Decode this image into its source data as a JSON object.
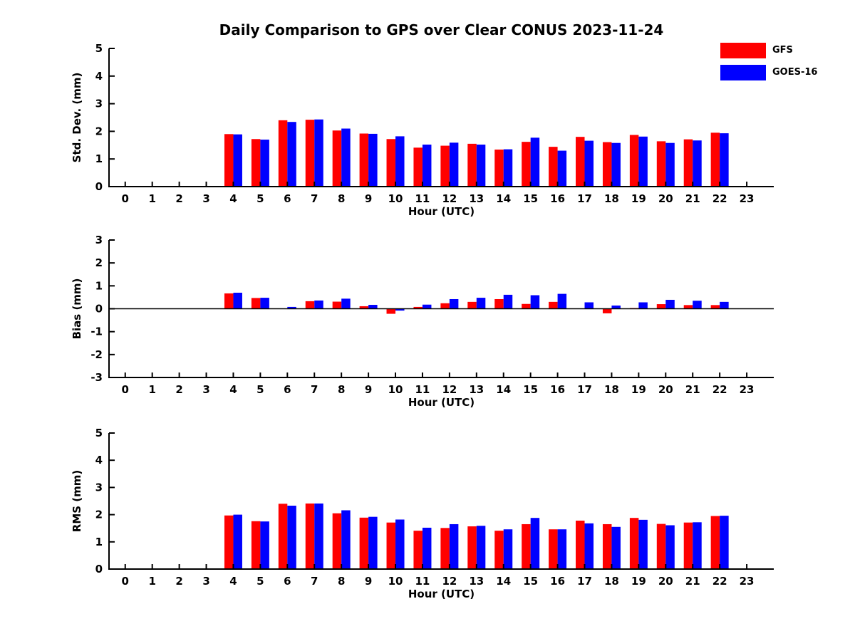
{
  "title": "Daily Comparison to GPS over Clear CONUS 2023-11-24",
  "legend": {
    "entries": [
      {
        "label": "GFS",
        "color": "#ff0000"
      },
      {
        "label": "GOES-16",
        "color": "#0000ff"
      }
    ]
  },
  "colors": {
    "gfs": "#ff0000",
    "goes16": "#0000ff",
    "axis": "#000000",
    "background": "#ffffff"
  },
  "chart_data": [
    {
      "type": "bar",
      "name": "std-dev",
      "ylabel": "Std. Dev. (mm)",
      "xlabel": "Hour (UTC)",
      "ylim": [
        0,
        5
      ],
      "yticks": [
        0,
        1,
        2,
        3,
        4,
        5
      ],
      "categories": [
        0,
        1,
        2,
        3,
        4,
        5,
        6,
        7,
        8,
        9,
        10,
        11,
        12,
        13,
        14,
        15,
        16,
        17,
        18,
        19,
        20,
        21,
        22,
        23
      ],
      "series": [
        {
          "name": "GFS",
          "color": "#ff0000",
          "values": [
            0,
            0,
            0,
            0,
            1.9,
            1.72,
            2.4,
            2.42,
            2.03,
            1.92,
            1.72,
            1.41,
            1.48,
            1.55,
            1.34,
            1.62,
            1.44,
            1.8,
            1.61,
            1.87,
            1.64,
            1.71,
            1.95,
            0
          ]
        },
        {
          "name": "GOES-16",
          "color": "#0000ff",
          "values": [
            0,
            0,
            0,
            0,
            1.89,
            1.7,
            2.34,
            2.43,
            2.1,
            1.91,
            1.82,
            1.52,
            1.59,
            1.52,
            1.35,
            1.77,
            1.3,
            1.66,
            1.58,
            1.81,
            1.58,
            1.67,
            1.93,
            0
          ]
        }
      ]
    },
    {
      "type": "bar",
      "name": "bias",
      "ylabel": "Bias (mm)",
      "xlabel": "Hour (UTC)",
      "ylim": [
        -3,
        3
      ],
      "yticks": [
        -3,
        -2,
        -1,
        0,
        1,
        2,
        3
      ],
      "zero_line": true,
      "categories": [
        0,
        1,
        2,
        3,
        4,
        5,
        6,
        7,
        8,
        9,
        10,
        11,
        12,
        13,
        14,
        15,
        16,
        17,
        18,
        19,
        20,
        21,
        22,
        23
      ],
      "series": [
        {
          "name": "GFS",
          "color": "#ff0000",
          "values": [
            0,
            0,
            0,
            0,
            0.67,
            0.47,
            0,
            0.33,
            0.31,
            0.11,
            -0.22,
            0.08,
            0.24,
            0.3,
            0.42,
            0.21,
            0.3,
            0,
            -0.2,
            0.03,
            0.2,
            0.16,
            0.16,
            0
          ]
        },
        {
          "name": "GOES-16",
          "color": "#0000ff",
          "values": [
            0,
            0,
            0,
            0,
            0.7,
            0.48,
            0.08,
            0.36,
            0.44,
            0.17,
            -0.08,
            0.18,
            0.42,
            0.48,
            0.61,
            0.59,
            0.65,
            0.28,
            0.14,
            0.28,
            0.39,
            0.35,
            0.3,
            0
          ]
        }
      ]
    },
    {
      "type": "bar",
      "name": "rms",
      "ylabel": "RMS (mm)",
      "xlabel": "Hour (UTC)",
      "ylim": [
        0,
        5
      ],
      "yticks": [
        0,
        1,
        2,
        3,
        4,
        5
      ],
      "categories": [
        0,
        1,
        2,
        3,
        4,
        5,
        6,
        7,
        8,
        9,
        10,
        11,
        12,
        13,
        14,
        15,
        16,
        17,
        18,
        19,
        20,
        21,
        22,
        23
      ],
      "series": [
        {
          "name": "GFS",
          "color": "#ff0000",
          "values": [
            0,
            0,
            0,
            0,
            1.97,
            1.76,
            2.4,
            2.41,
            2.05,
            1.89,
            1.71,
            1.41,
            1.51,
            1.57,
            1.41,
            1.65,
            1.46,
            1.78,
            1.65,
            1.88,
            1.66,
            1.71,
            1.95,
            0
          ]
        },
        {
          "name": "GOES-16",
          "color": "#0000ff",
          "values": [
            0,
            0,
            0,
            0,
            2.0,
            1.75,
            2.33,
            2.41,
            2.16,
            1.92,
            1.82,
            1.52,
            1.65,
            1.59,
            1.46,
            1.88,
            1.46,
            1.68,
            1.55,
            1.81,
            1.61,
            1.72,
            1.96,
            0
          ]
        }
      ]
    }
  ]
}
